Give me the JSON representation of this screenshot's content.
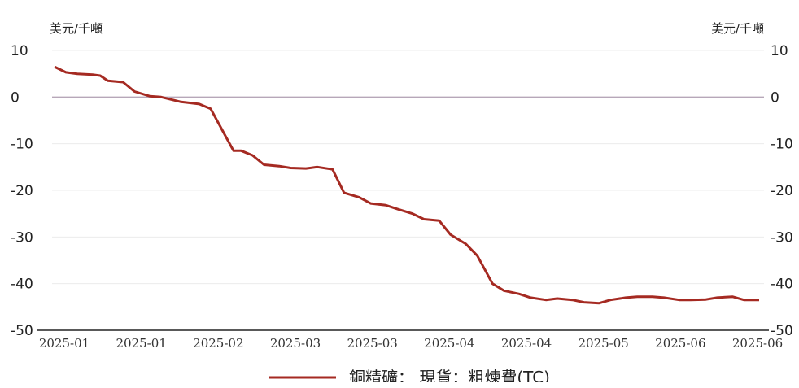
{
  "chart_data": {
    "type": "line",
    "unit_left": "美元/千噸",
    "unit_right": "美元/千噸",
    "y_ticks": [
      10,
      0,
      -10,
      -20,
      -30,
      -40,
      -50
    ],
    "y_tick_labels": [
      "10",
      "0",
      "-10",
      "-20",
      "-30",
      "-40",
      "-50"
    ],
    "y_tick_labels_right": [
      "10",
      "0",
      "-10",
      "-20",
      "-30",
      "-40",
      "-50"
    ],
    "ylim": [
      -50,
      10
    ],
    "x_tick_labels": [
      "2025-01",
      "2025-01",
      "2025-02",
      "2025-03",
      "2025-03",
      "2025-04",
      "2025-04",
      "2025-05",
      "2025-06",
      "2025-06"
    ],
    "x": [
      "2024-12-27",
      "2024-12-30",
      "2025-01-02",
      "2025-01-06",
      "2025-01-08",
      "2025-01-10",
      "2025-01-14",
      "2025-01-17",
      "2025-01-21",
      "2025-01-24",
      "2025-01-29",
      "2025-02-03",
      "2025-02-06",
      "2025-02-10",
      "2025-02-12",
      "2025-02-14",
      "2025-02-17",
      "2025-02-20",
      "2025-02-24",
      "2025-02-27",
      "2025-03-03",
      "2025-03-06",
      "2025-03-10",
      "2025-03-13",
      "2025-03-17",
      "2025-03-20",
      "2025-03-24",
      "2025-03-27",
      "2025-03-31",
      "2025-04-03",
      "2025-04-07",
      "2025-04-10",
      "2025-04-14",
      "2025-04-17",
      "2025-04-21",
      "2025-04-24",
      "2025-04-28",
      "2025-05-01",
      "2025-05-05",
      "2025-05-08",
      "2025-05-12",
      "2025-05-15",
      "2025-05-19",
      "2025-05-22",
      "2025-05-26",
      "2025-05-29",
      "2025-06-02",
      "2025-06-05",
      "2025-06-09",
      "2025-06-12",
      "2025-06-16",
      "2025-06-19",
      "2025-06-23",
      "2025-06-26",
      "2025-06-30"
    ],
    "series": [
      {
        "name": "銅精礦： 現貨：粗煉費(TC)",
        "color": "#a52a22",
        "values": [
          6.5,
          5.3,
          5.0,
          4.8,
          4.6,
          3.5,
          3.2,
          1.2,
          0.2,
          0.0,
          -1.0,
          -1.5,
          -2.5,
          -8.5,
          -11.5,
          -11.5,
          -12.5,
          -14.5,
          -14.8,
          -15.2,
          -15.3,
          -15.0,
          -15.5,
          -20.5,
          -21.5,
          -22.8,
          -23.2,
          -24.0,
          -25.0,
          -26.2,
          -26.5,
          -29.5,
          -31.5,
          -34.0,
          -40.0,
          -41.5,
          -42.2,
          -43.0,
          -43.5,
          -43.2,
          -43.5,
          -44.0,
          -44.2,
          -43.5,
          -43.0,
          -42.8,
          -42.8,
          -43.0,
          -43.5,
          -43.5,
          -43.4,
          -43.0,
          -42.8,
          -43.5,
          -43.5
        ]
      }
    ],
    "grid": true,
    "legend_placement": "bottom-center"
  }
}
